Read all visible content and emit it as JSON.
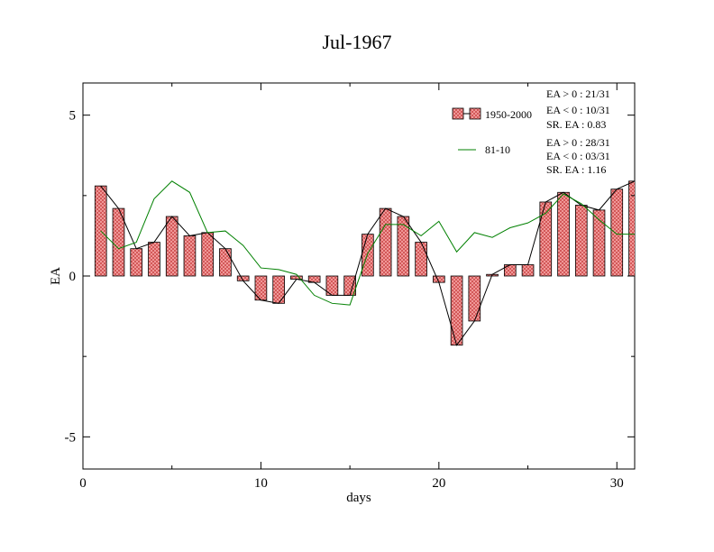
{
  "chart_data": {
    "type": "bar",
    "title": "Jul-1967",
    "xlabel": "days",
    "ylabel": "EA",
    "xlim": [
      0,
      31
    ],
    "ylim": [
      -6,
      6
    ],
    "xticks": [
      0,
      10,
      20,
      30
    ],
    "xtick_labels": [
      "0",
      "10",
      "20",
      "30"
    ],
    "yticks": [
      -5,
      0,
      5
    ],
    "ytick_labels": [
      "-5",
      "0",
      "5"
    ],
    "grid": false,
    "legend_position": "top-right",
    "x": [
      1,
      2,
      3,
      4,
      5,
      6,
      7,
      8,
      9,
      10,
      11,
      12,
      13,
      14,
      15,
      16,
      17,
      18,
      19,
      20,
      21,
      22,
      23,
      24,
      25,
      26,
      27,
      28,
      29,
      30,
      31
    ],
    "series": [
      {
        "name": "1950-2000",
        "kind": "bar",
        "color": "#f08080",
        "values": [
          2.8,
          2.1,
          0.85,
          1.05,
          1.85,
          1.25,
          1.35,
          0.85,
          -0.15,
          -0.75,
          -0.85,
          -0.1,
          -0.2,
          -0.6,
          -0.6,
          1.3,
          2.1,
          1.85,
          1.05,
          -0.2,
          -2.15,
          -1.4,
          0.05,
          0.35,
          0.35,
          2.3,
          2.6,
          2.2,
          2.05,
          2.7,
          2.95
        ]
      },
      {
        "name": "81-10",
        "kind": "line",
        "color": "#008000",
        "values": [
          1.4,
          0.85,
          1.05,
          2.4,
          2.95,
          2.6,
          1.35,
          1.4,
          0.95,
          0.25,
          0.2,
          0.05,
          -0.6,
          -0.85,
          -0.9,
          0.7,
          1.6,
          1.6,
          1.25,
          1.7,
          0.75,
          1.35,
          1.2,
          1.5,
          1.65,
          1.95,
          2.55,
          2.25,
          1.75,
          1.3,
          1.3
        ]
      }
    ],
    "stats_1950_2000": [
      "EA > 0 : 21/31",
      "EA < 0 : 10/31",
      "SR. EA :  0.83"
    ],
    "stats_81_10": [
      "EA > 0 : 28/31",
      "EA < 0 : 03/31",
      "SR. EA :  1.16"
    ]
  }
}
